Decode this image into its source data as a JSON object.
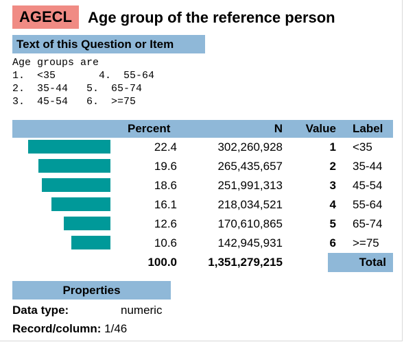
{
  "variable": {
    "name": "AGECL",
    "title": "Age group of the reference person"
  },
  "question_section": {
    "header": "Text of this Question or Item",
    "lines": [
      "Age groups are",
      "1.  <35       4.  55-64",
      "2.  35-44   5.  65-74",
      "3.  45-54   6.  >=75"
    ]
  },
  "table": {
    "headers": {
      "percent": "Percent",
      "n": "N",
      "value": "Value",
      "label": "Label"
    },
    "rows": [
      {
        "percent": "22.4",
        "n": "302,260,928",
        "value": "1",
        "label": "<35",
        "share": 22.4
      },
      {
        "percent": "19.6",
        "n": "265,435,657",
        "value": "2",
        "label": "35-44",
        "share": 19.6
      },
      {
        "percent": "18.6",
        "n": "251,991,313",
        "value": "3",
        "label": "45-54",
        "share": 18.6
      },
      {
        "percent": "16.1",
        "n": "218,034,521",
        "value": "4",
        "label": "55-64",
        "share": 16.1
      },
      {
        "percent": "12.6",
        "n": "170,610,865",
        "value": "5",
        "label": "65-74",
        "share": 12.6
      },
      {
        "percent": "10.6",
        "n": "142,945,931",
        "value": "6",
        "label": ">=75",
        "share": 10.6
      }
    ],
    "total": {
      "percent": "100.0",
      "n": "1,351,279,215",
      "label": "Total"
    },
    "bar_color": "#009999"
  },
  "properties": {
    "header": "Properties",
    "data_type_label": "Data type:",
    "data_type_value": "numeric",
    "record_label": "Record/column:",
    "record_value": "1/46"
  },
  "colors": {
    "name_badge": "#f08b84",
    "section_header": "#8fb8d8"
  }
}
